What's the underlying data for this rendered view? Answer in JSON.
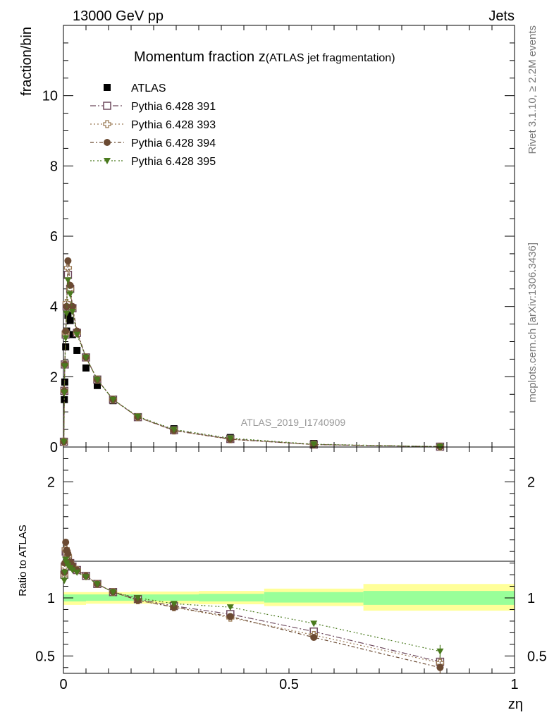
{
  "header": {
    "left": "13000 GeV pp",
    "right": "Jets"
  },
  "side_labels": {
    "rivet": "Rivet 3.1.10, ≥ 2.2M events",
    "mcplots": "mcplots.cern.ch [arXiv:1306.3436]"
  },
  "chart_data": [
    {
      "type": "scatter",
      "title_main": "Momentum fraction z",
      "title_sub": "(ATLAS jet fragmentation)",
      "ylabel": "fraction/bin",
      "watermark": "ATLAS_2019_I1740909",
      "xlim": [
        0,
        1.0
      ],
      "ylim": [
        0,
        12
      ],
      "yticks": [
        0,
        2,
        4,
        6,
        8,
        10
      ],
      "yticklabels": [
        "0",
        "2",
        "4",
        "6",
        "8",
        "10"
      ],
      "legend_position": "top-left",
      "series": [
        {
          "name": "ATLAS",
          "color": "#000000",
          "marker": "square-filled",
          "x": [
            0.001,
            0.002,
            0.003,
            0.005,
            0.007,
            0.01,
            0.015,
            0.02,
            0.03,
            0.05,
            0.075,
            0.11,
            0.165,
            0.245,
            0.37,
            0.555,
            0.835
          ],
          "y": [
            0.15,
            1.35,
            1.85,
            2.85,
            3.3,
            3.75,
            3.6,
            3.2,
            2.75,
            2.25,
            1.75,
            1.32,
            0.85,
            0.52,
            0.27,
            0.1,
            0.02
          ]
        },
        {
          "name": "Pythia 6.428 391",
          "color": "#6e4a5e",
          "marker": "square-open",
          "dash": "8,3,2,3",
          "x": [
            0.001,
            0.002,
            0.003,
            0.005,
            0.007,
            0.01,
            0.015,
            0.02,
            0.03,
            0.05,
            0.075,
            0.11,
            0.165,
            0.245,
            0.37,
            0.555,
            0.835
          ],
          "y": [
            0.15,
            1.6,
            2.35,
            3.2,
            4.0,
            4.9,
            4.5,
            3.95,
            3.25,
            2.55,
            1.92,
            1.35,
            0.85,
            0.48,
            0.23,
            0.07,
            0.01
          ]
        },
        {
          "name": "Pythia 6.428 393",
          "color": "#9a7a55",
          "marker": "cross-open",
          "dash": "2,3",
          "x": [
            0.001,
            0.002,
            0.003,
            0.005,
            0.007,
            0.01,
            0.015,
            0.02,
            0.03,
            0.05,
            0.075,
            0.11,
            0.165,
            0.245,
            0.37,
            0.555,
            0.835
          ],
          "y": [
            0.15,
            1.6,
            2.35,
            3.25,
            4.1,
            5.1,
            4.5,
            3.95,
            3.25,
            2.55,
            1.92,
            1.35,
            0.85,
            0.47,
            0.22,
            0.07,
            0.01
          ]
        },
        {
          "name": "Pythia 6.428 394",
          "color": "#6b4a32",
          "marker": "circle-filled",
          "dash": "5,3,2,3",
          "x": [
            0.001,
            0.002,
            0.003,
            0.005,
            0.007,
            0.01,
            0.015,
            0.02,
            0.03,
            0.05,
            0.075,
            0.11,
            0.165,
            0.245,
            0.37,
            0.555,
            0.835
          ],
          "y": [
            0.15,
            1.6,
            2.35,
            3.3,
            4.0,
            5.3,
            4.6,
            4.0,
            3.3,
            2.55,
            1.92,
            1.35,
            0.85,
            0.47,
            0.22,
            0.07,
            0.01
          ]
        },
        {
          "name": "Pythia 6.428 395",
          "color": "#4a7a1e",
          "marker": "triangle-down-filled",
          "dash": "2,2,2,4",
          "x": [
            0.001,
            0.002,
            0.003,
            0.005,
            0.007,
            0.01,
            0.015,
            0.02,
            0.03,
            0.05,
            0.075,
            0.11,
            0.165,
            0.245,
            0.37,
            0.555,
            0.835
          ],
          "y": [
            0.15,
            1.55,
            2.3,
            3.1,
            3.8,
            4.75,
            4.35,
            3.85,
            3.2,
            2.55,
            1.92,
            1.35,
            0.87,
            0.5,
            0.25,
            0.08,
            0.01
          ]
        }
      ]
    },
    {
      "type": "scatter",
      "ylabel": "Ratio to ATLAS",
      "xlabel": "zη",
      "xlim": [
        0,
        1.0
      ],
      "ylim": [
        0.35,
        2.3
      ],
      "xticks": [
        0,
        0.5,
        1
      ],
      "xticklabels": [
        "0",
        "0.5",
        "1"
      ],
      "yticks": [
        0.5,
        1,
        2
      ],
      "yticklabels": [
        "0.5",
        "1",
        "2"
      ],
      "bands": [
        {
          "x0": 0.0,
          "x1": 0.05,
          "inner": [
            0.97,
            1.03
          ],
          "outer": [
            0.94,
            1.05
          ]
        },
        {
          "x0": 0.05,
          "x1": 0.15,
          "inner": [
            0.975,
            1.03
          ],
          "outer": [
            0.95,
            1.05
          ]
        },
        {
          "x0": 0.15,
          "x1": 0.3,
          "inner": [
            0.975,
            1.03
          ],
          "outer": [
            0.95,
            1.055
          ]
        },
        {
          "x0": 0.3,
          "x1": 0.445,
          "inner": [
            0.97,
            1.035
          ],
          "outer": [
            0.945,
            1.06
          ]
        },
        {
          "x0": 0.445,
          "x1": 0.665,
          "inner": [
            0.96,
            1.05
          ],
          "outer": [
            0.93,
            1.08
          ]
        },
        {
          "x0": 0.665,
          "x1": 1.0,
          "inner": [
            0.94,
            1.06
          ],
          "outer": [
            0.89,
            1.12
          ]
        }
      ],
      "series": [
        {
          "name": "Pythia 6.428 391",
          "color": "#6e4a5e",
          "marker": "square-open",
          "dash": "8,3,2,3",
          "x": [
            0.002,
            0.003,
            0.005,
            0.007,
            0.01,
            0.015,
            0.02,
            0.03,
            0.05,
            0.075,
            0.11,
            0.165,
            0.245,
            0.37,
            0.555,
            0.835
          ],
          "y": [
            1.2,
            1.27,
            1.4,
            1.38,
            1.33,
            1.3,
            1.27,
            1.24,
            1.19,
            1.12,
            1.05,
            0.99,
            0.93,
            0.86,
            0.71,
            0.45
          ]
        },
        {
          "name": "Pythia 6.428 393",
          "color": "#9a7a55",
          "marker": "cross-open",
          "dash": "2,3",
          "x": [
            0.002,
            0.003,
            0.005,
            0.007,
            0.01,
            0.015,
            0.02,
            0.03,
            0.05,
            0.075,
            0.11,
            0.165,
            0.245,
            0.37,
            0.555,
            0.835
          ],
          "y": [
            1.2,
            1.27,
            1.42,
            1.4,
            1.36,
            1.3,
            1.27,
            1.24,
            1.19,
            1.12,
            1.05,
            0.98,
            0.92,
            0.83,
            0.68,
            0.44
          ]
        },
        {
          "name": "Pythia 6.428 394",
          "color": "#6b4a32",
          "marker": "circle-filled",
          "dash": "5,3,2,3",
          "x": [
            0.002,
            0.003,
            0.005,
            0.007,
            0.01,
            0.015,
            0.02,
            0.03,
            0.05,
            0.075,
            0.11,
            0.165,
            0.245,
            0.37,
            0.555,
            0.835
          ],
          "y": [
            1.22,
            1.3,
            1.48,
            1.41,
            1.38,
            1.31,
            1.28,
            1.24,
            1.19,
            1.12,
            1.05,
            0.98,
            0.92,
            0.84,
            0.66,
            0.4
          ]
        },
        {
          "name": "Pythia 6.428 395",
          "color": "#4a7a1e",
          "marker": "triangle-down-filled",
          "dash": "2,2,2,4",
          "x": [
            0.002,
            0.003,
            0.005,
            0.007,
            0.01,
            0.015,
            0.02,
            0.03,
            0.05,
            0.075,
            0.11,
            0.165,
            0.245,
            0.37,
            0.555,
            0.835
          ],
          "y": [
            1.15,
            1.22,
            1.33,
            1.3,
            1.28,
            1.26,
            1.24,
            1.22,
            1.18,
            1.12,
            1.05,
            1.0,
            0.95,
            0.92,
            0.78,
            0.54
          ]
        }
      ]
    }
  ]
}
